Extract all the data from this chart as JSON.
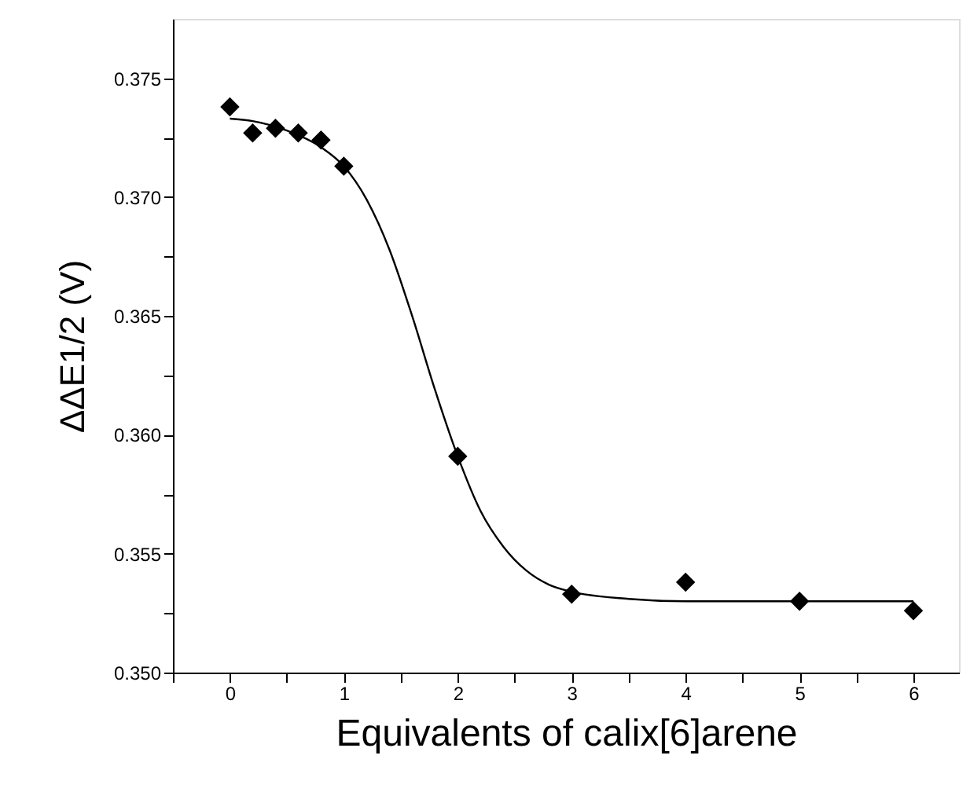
{
  "chart_data": {
    "type": "scatter",
    "xlabel": "Equivalents of calix[6]arene",
    "ylabel": "ΔΔE1/2 (V)",
    "xlim": [
      -0.5,
      6.4
    ],
    "ylim": [
      0.35,
      0.3775
    ],
    "xticks": [
      {
        "value": -0.5,
        "label": null
      },
      0,
      {
        "value": 0.5,
        "label": null
      },
      1,
      {
        "value": 1.5,
        "label": null
      },
      2,
      {
        "value": 2.5,
        "label": null
      },
      3,
      {
        "value": 3.5,
        "label": null
      },
      4,
      {
        "value": 4.5,
        "label": null
      },
      5,
      {
        "value": 5.5,
        "label": null
      },
      6
    ],
    "yticks": [
      {
        "value": 0.35,
        "label": "0.350"
      },
      {
        "value": 0.3525,
        "label": null
      },
      {
        "value": 0.355,
        "label": "0.355"
      },
      {
        "value": 0.3575,
        "label": null
      },
      {
        "value": 0.36,
        "label": "0.360"
      },
      {
        "value": 0.3625,
        "label": null
      },
      {
        "value": 0.365,
        "label": "0.365"
      },
      {
        "value": 0.3675,
        "label": null
      },
      {
        "value": 0.37,
        "label": "0.370"
      },
      {
        "value": 0.3725,
        "label": null
      },
      {
        "value": 0.375,
        "label": "0.375"
      }
    ],
    "grid": false,
    "legend": false,
    "series": [
      {
        "type": "line",
        "color": "#000000",
        "marker": "none",
        "line_style": "solid",
        "x": [
          0,
          0.2,
          0.5,
          0.8,
          1.0,
          1.2,
          1.4,
          1.6,
          1.8,
          2.0,
          2.2,
          2.4,
          2.6,
          2.8,
          3.0,
          3.5,
          4.0,
          5.0,
          6.0
        ],
        "values": [
          0.3733,
          0.3732,
          0.3728,
          0.3721,
          0.3713,
          0.3699,
          0.3678,
          0.365,
          0.3619,
          0.3591,
          0.3568,
          0.3553,
          0.3543,
          0.3537,
          0.3534,
          0.3531,
          0.353,
          0.353,
          0.353
        ]
      },
      {
        "color": "#000000",
        "marker": "diamond",
        "x": [
          0,
          0.2,
          0.4,
          0.6,
          0.8,
          1,
          2,
          3,
          4,
          5,
          6
        ],
        "values": [
          0.3738,
          0.3727,
          0.3729,
          0.3727,
          0.3724,
          0.3713,
          0.3591,
          0.3533,
          0.3538,
          0.353,
          0.3526
        ]
      }
    ]
  }
}
